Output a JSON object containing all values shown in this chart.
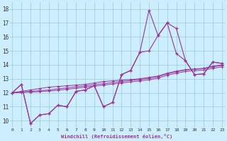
{
  "xlabel": "Windchill (Refroidissement éolien,°C)",
  "bg_color": "#cceeff",
  "line_color": "#993399",
  "grid_color": "#99cccc",
  "xmin": 0,
  "xmax": 23,
  "ymin": 9.5,
  "ymax": 18.5,
  "yticks": [
    10,
    11,
    12,
    13,
    14,
    15,
    16,
    17,
    18
  ],
  "xticks": [
    0,
    1,
    2,
    3,
    4,
    5,
    6,
    7,
    8,
    9,
    10,
    11,
    12,
    13,
    14,
    15,
    16,
    17,
    18,
    19,
    20,
    21,
    22,
    23
  ],
  "line1_x": [
    0,
    1,
    2,
    3,
    4,
    5,
    6,
    7,
    8,
    9,
    10,
    11,
    12,
    13,
    14,
    15,
    16,
    17,
    18,
    19,
    20,
    21,
    22,
    23
  ],
  "line1_y": [
    12.0,
    12.6,
    9.8,
    10.4,
    10.5,
    11.1,
    11.0,
    12.1,
    12.2,
    12.5,
    11.0,
    11.3,
    13.3,
    13.6,
    14.9,
    17.9,
    16.1,
    17.0,
    16.6,
    14.3,
    13.3,
    13.35,
    14.2,
    14.1
  ],
  "line2_x": [
    0,
    1,
    2,
    3,
    4,
    5,
    6,
    7,
    8,
    9,
    10,
    11,
    12,
    13,
    14,
    15,
    16,
    17,
    18,
    19,
    20,
    21,
    22,
    23
  ],
  "line2_y": [
    12.0,
    12.6,
    9.8,
    10.4,
    10.5,
    11.1,
    11.0,
    12.1,
    12.2,
    12.5,
    11.0,
    11.3,
    13.3,
    13.6,
    14.9,
    15.0,
    16.1,
    17.0,
    14.8,
    14.3,
    13.3,
    13.35,
    14.2,
    14.1
  ],
  "line3_x": [
    0,
    1,
    2,
    3,
    4,
    5,
    6,
    7,
    8,
    9,
    10,
    11,
    12,
    13,
    14,
    15,
    16,
    17,
    18,
    19,
    20,
    21,
    22,
    23
  ],
  "line3_y": [
    12.0,
    12.1,
    12.2,
    12.3,
    12.4,
    12.45,
    12.5,
    12.55,
    12.6,
    12.7,
    12.8,
    12.85,
    12.9,
    12.95,
    13.0,
    13.1,
    13.2,
    13.4,
    13.55,
    13.65,
    13.7,
    13.75,
    13.9,
    14.0
  ],
  "line4_x": [
    0,
    1,
    2,
    3,
    4,
    5,
    6,
    7,
    8,
    9,
    10,
    11,
    12,
    13,
    14,
    15,
    16,
    17,
    18,
    19,
    20,
    21,
    22,
    23
  ],
  "line4_y": [
    12.0,
    12.05,
    12.1,
    12.15,
    12.2,
    12.28,
    12.35,
    12.42,
    12.5,
    12.58,
    12.65,
    12.72,
    12.8,
    12.88,
    12.95,
    13.02,
    13.15,
    13.35,
    13.5,
    13.62,
    13.68,
    13.72,
    13.85,
    13.95
  ],
  "line5_x": [
    0,
    1,
    2,
    3,
    4,
    5,
    6,
    7,
    8,
    9,
    10,
    11,
    12,
    13,
    14,
    15,
    16,
    17,
    18,
    19,
    20,
    21,
    22,
    23
  ],
  "line5_y": [
    12.0,
    12.02,
    12.05,
    12.08,
    12.12,
    12.18,
    12.25,
    12.32,
    12.4,
    12.48,
    12.55,
    12.62,
    12.7,
    12.78,
    12.85,
    12.92,
    13.05,
    13.25,
    13.4,
    13.52,
    13.58,
    13.62,
    13.75,
    13.85
  ]
}
